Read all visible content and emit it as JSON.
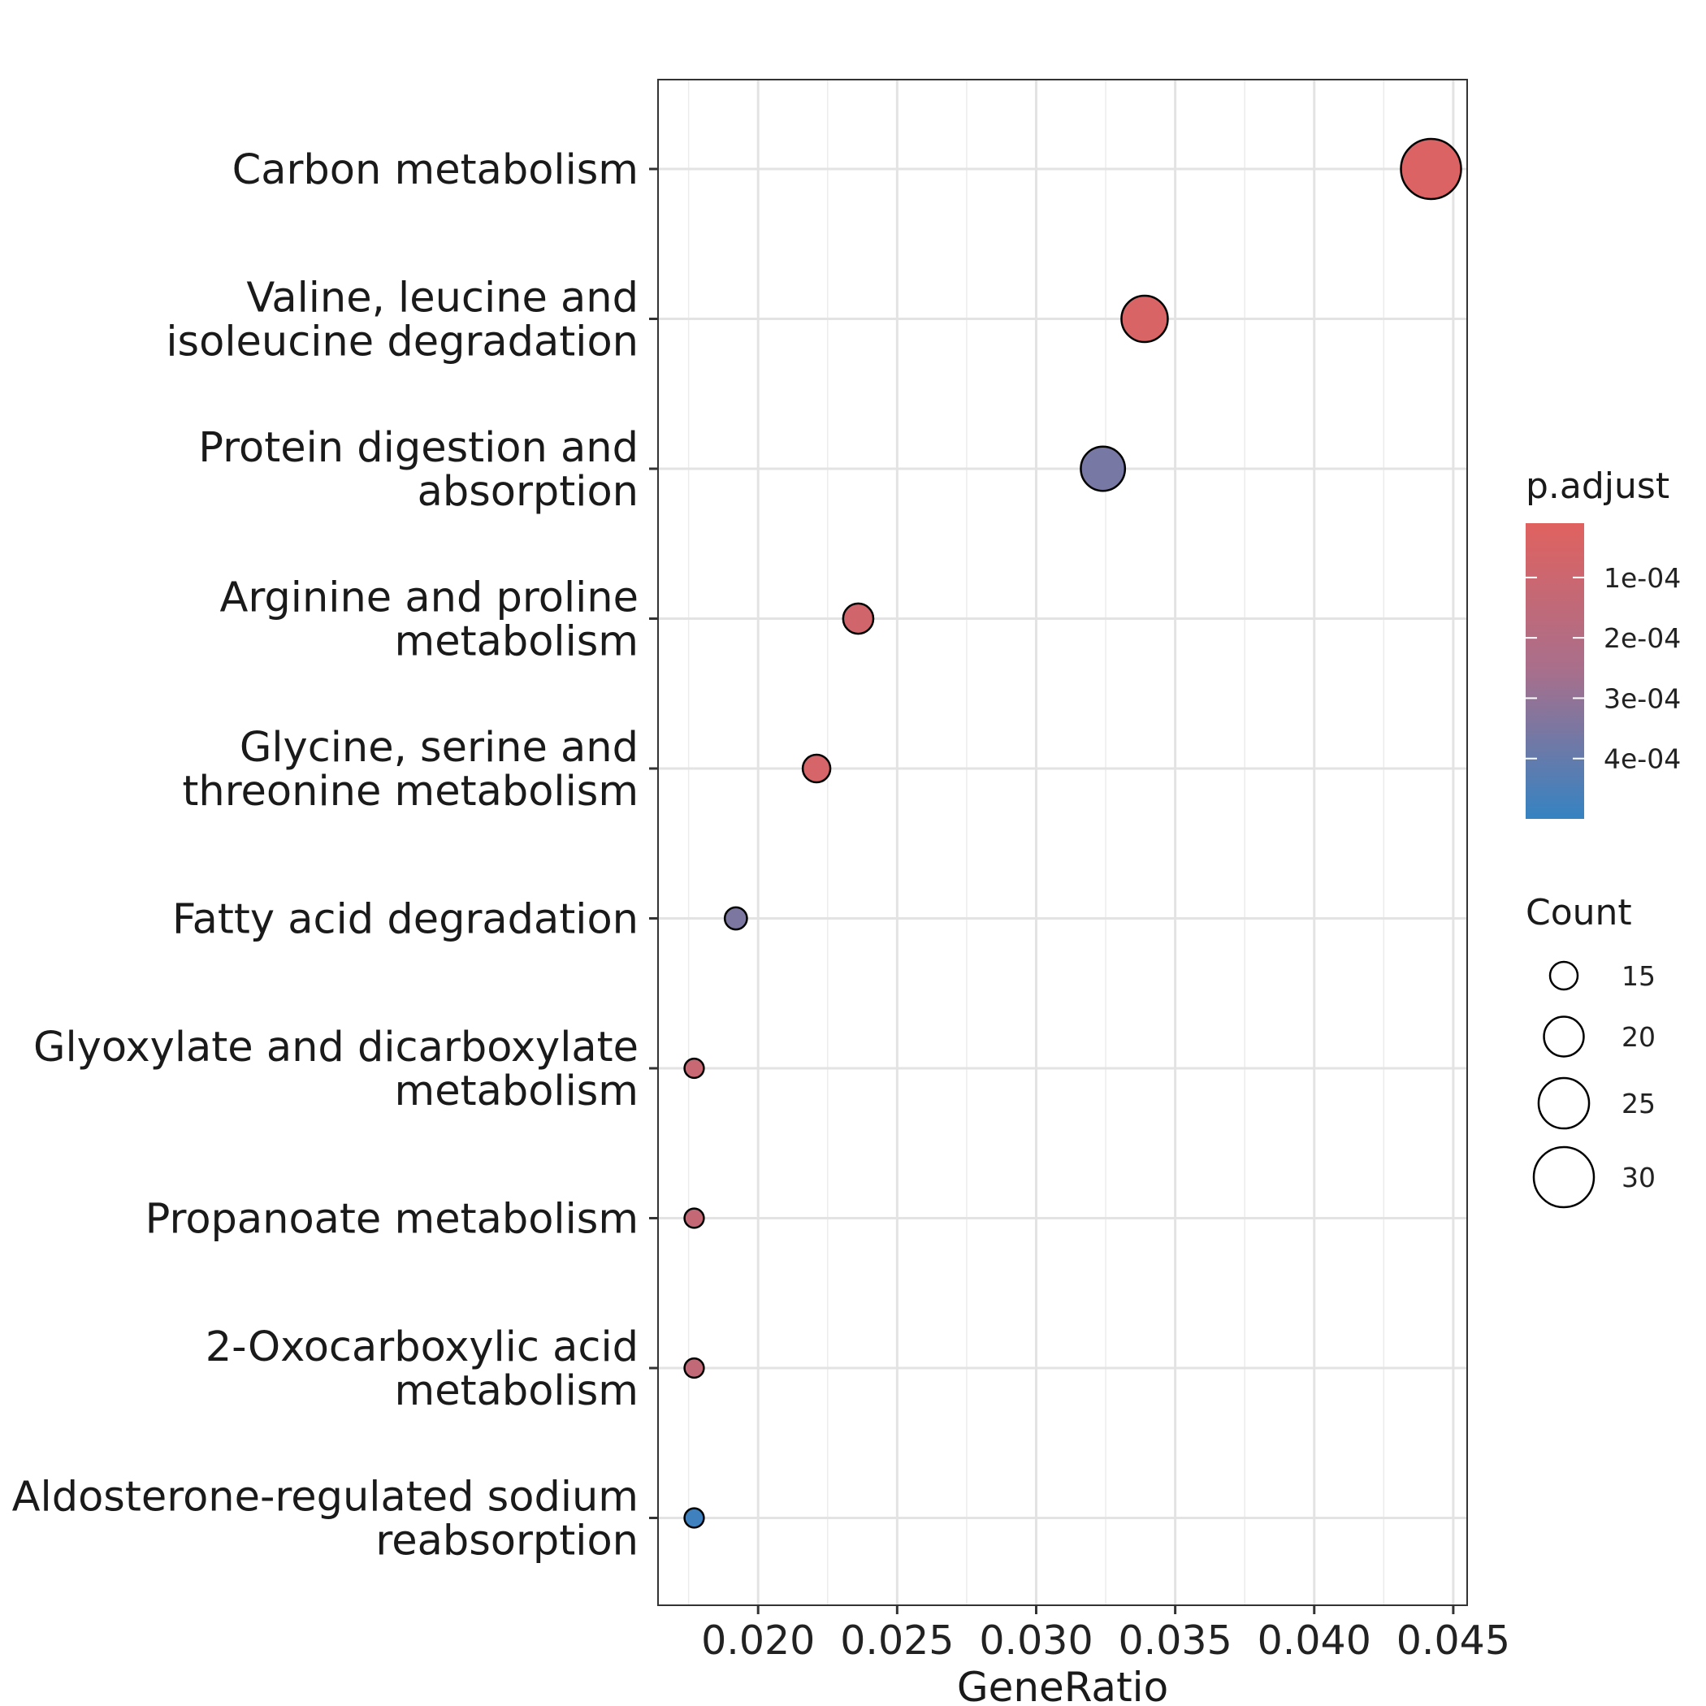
{
  "chart_data": {
    "type": "scatter",
    "xlabel": "GeneRatio",
    "ylabel": "",
    "xlim": [
      0.0164,
      0.0455
    ],
    "x_ticks": [
      "0.020",
      "0.025",
      "0.030",
      "0.035",
      "0.040",
      "0.045"
    ],
    "x_tick_values": [
      0.02,
      0.025,
      0.03,
      0.035,
      0.04,
      0.045
    ],
    "grid": true,
    "categories": [
      [
        "Carbon metabolism"
      ],
      [
        "Valine, leucine and",
        "isoleucine degradation"
      ],
      [
        "Protein digestion and",
        "absorption"
      ],
      [
        "Arginine and proline",
        "metabolism"
      ],
      [
        "Glycine, serine and",
        "threonine metabolism"
      ],
      [
        "Fatty acid degradation"
      ],
      [
        "Glyoxylate and dicarboxylate",
        "metabolism"
      ],
      [
        "Propanoate metabolism"
      ],
      [
        "2-Oxocarboxylic acid",
        "metabolism"
      ],
      [
        "Aldosterone-regulated sodium",
        "reabsorption"
      ]
    ],
    "points": [
      {
        "x": 0.0442,
        "count": 30,
        "p_adjust": 3e-05
      },
      {
        "x": 0.0339,
        "count": 23,
        "p_adjust": 4e-05
      },
      {
        "x": 0.0324,
        "count": 22,
        "p_adjust": 0.00036
      },
      {
        "x": 0.0236,
        "count": 16,
        "p_adjust": 8e-05
      },
      {
        "x": 0.0221,
        "count": 15,
        "p_adjust": 6e-05
      },
      {
        "x": 0.0192,
        "count": 13,
        "p_adjust": 0.00035
      },
      {
        "x": 0.0177,
        "count": 12,
        "p_adjust": 0.00012
      },
      {
        "x": 0.0177,
        "count": 12,
        "p_adjust": 0.00013
      },
      {
        "x": 0.0177,
        "count": 12,
        "p_adjust": 0.00014
      },
      {
        "x": 0.0177,
        "count": 12,
        "p_adjust": 0.00048
      }
    ],
    "legend_color": {
      "title": "p.adjust",
      "range": [
        1e-05,
        0.0005
      ],
      "low_color": "#e0625f",
      "mid_color": "#a86f8c",
      "high_color": "#3583c2",
      "tick_values": [
        0.0001,
        0.0002,
        0.0003,
        0.0004
      ],
      "tick_labels": [
        "1e-04",
        "2e-04",
        "3e-04",
        "4e-04"
      ]
    },
    "legend_size": {
      "title": "Count",
      "values": [
        15,
        20,
        25,
        30
      ],
      "labels": [
        "15",
        "20",
        "25",
        "30"
      ]
    },
    "legend_position": "right"
  }
}
